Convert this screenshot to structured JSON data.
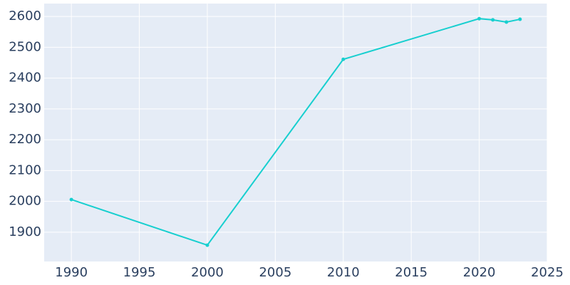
{
  "chart_data": {
    "type": "line",
    "x": [
      1990,
      2000,
      2010,
      2020,
      2021,
      2022,
      2023
    ],
    "series": [
      {
        "color": "#17cfcf",
        "values": [
          2006,
          1858,
          2461,
          2593,
          2589,
          2582,
          2591
        ]
      }
    ],
    "xlim": [
      1988,
      2025
    ],
    "ylim": [
      1805,
      2642
    ],
    "xticks": [
      1990,
      1995,
      2000,
      2005,
      2010,
      2015,
      2020,
      2025
    ],
    "yticks": [
      1900,
      2000,
      2100,
      2200,
      2300,
      2400,
      2500,
      2600
    ],
    "grid": true,
    "background": "#e5ecf6"
  }
}
